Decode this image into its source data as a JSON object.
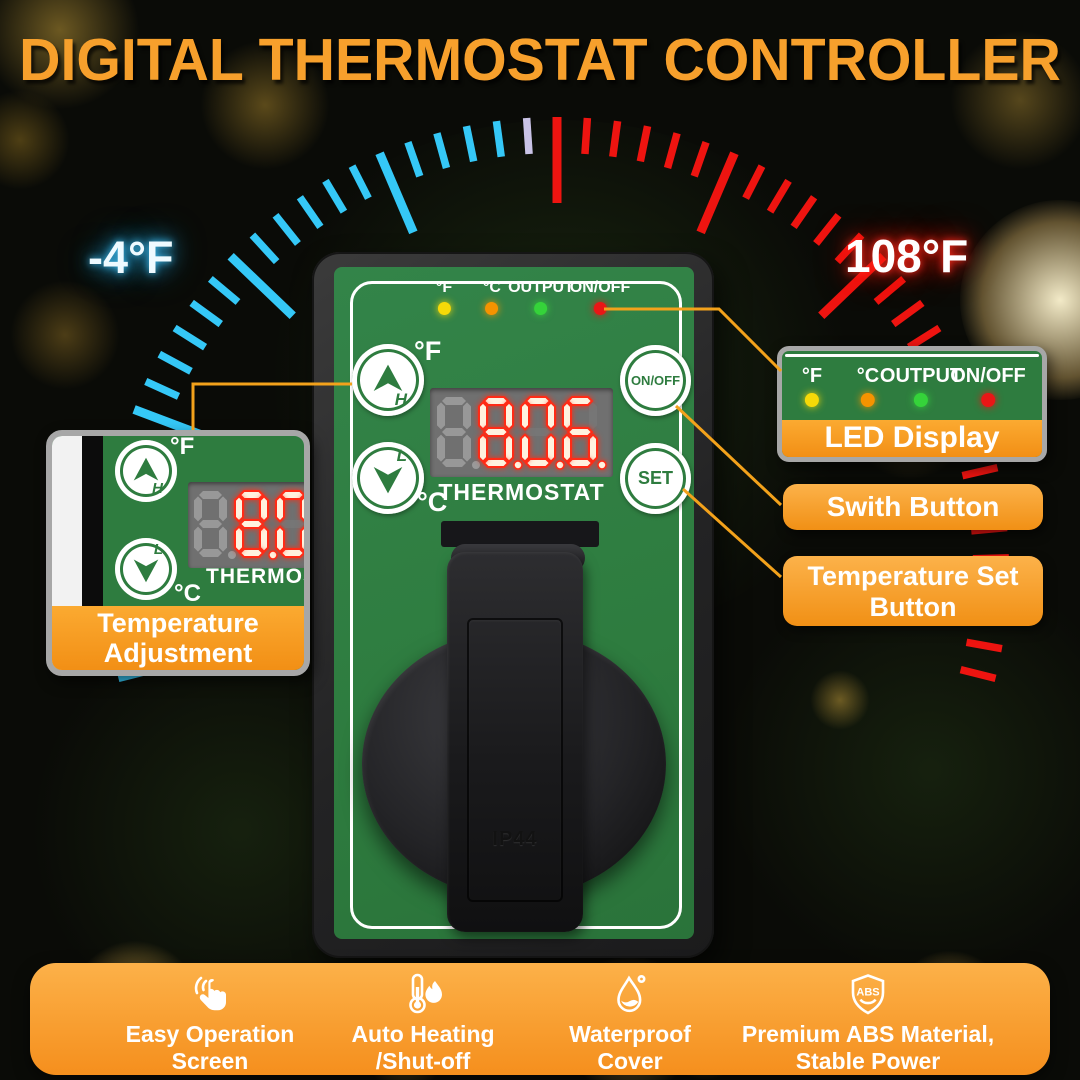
{
  "title": "DIGITAL THERMOSTAT CONTROLLER",
  "gauge": {
    "min_label": "-4°F",
    "max_label": "108°F",
    "cold_color": "#35c8f7",
    "hot_color": "#ee1410",
    "neutral_color": "#c9c3e6",
    "tick_count": 55,
    "neutral_index": 26
  },
  "device": {
    "indicators": [
      {
        "label": "°F",
        "color": "#f6d908"
      },
      {
        "label": "°C",
        "color": "#f59300"
      },
      {
        "label": "OUTPUT",
        "color": "#35d33a"
      },
      {
        "label": "ON/OFF",
        "color": "#e91616"
      }
    ],
    "ghost_digit": "8",
    "display_digits": "806",
    "mini_display_digits": "80",
    "brand": "THERMOSTAT",
    "up_button": {
      "letter": "H",
      "unit": "°F"
    },
    "down_button": {
      "letter": "L",
      "unit": "°C"
    },
    "onoff_button_label": "ON/OFF",
    "set_button_label": "SET",
    "cover_label": "IP44"
  },
  "callouts": {
    "temperature_adjustment": {
      "line1": "Temperature",
      "line2": "Adjustment"
    },
    "led_display": {
      "label": "LED Display"
    },
    "switch_button": {
      "label": "Swith Button"
    },
    "temp_set_button": {
      "line1": "Temperature Set",
      "line2": "Button"
    }
  },
  "features": [
    {
      "icon": "touch-icon",
      "line1": "Easy Operation",
      "line2": "Screen"
    },
    {
      "icon": "heat-icon",
      "line1": "Auto Heating",
      "line2": "/Shut-off"
    },
    {
      "icon": "waterproof-icon",
      "line1": "Waterproof",
      "line2": "Cover"
    },
    {
      "icon": "abs-shield-icon",
      "line1": "Premium ABS Material,",
      "line2": "Stable Power",
      "badge": "ABS"
    }
  ]
}
